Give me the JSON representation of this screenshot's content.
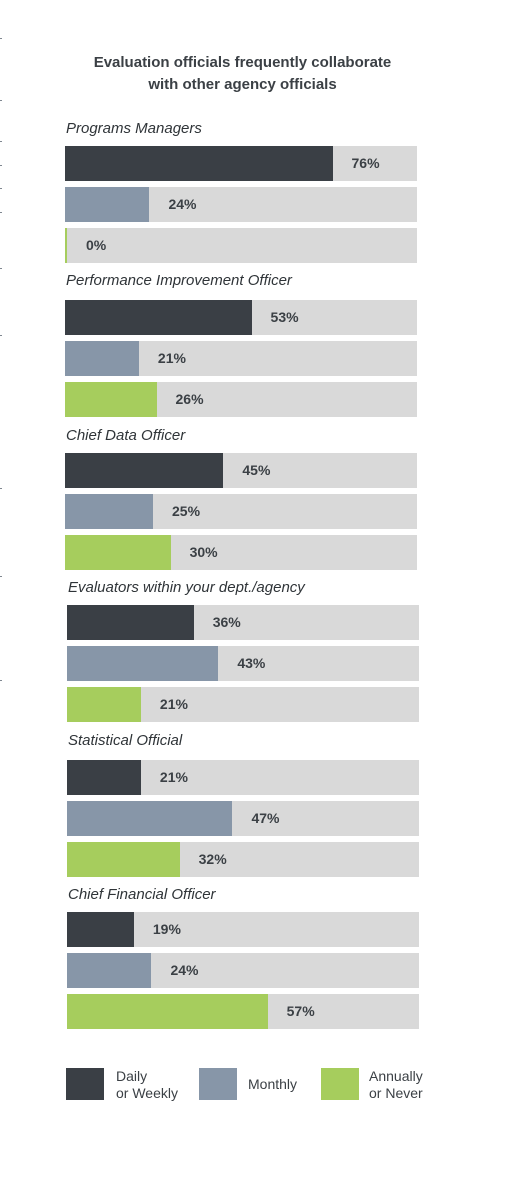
{
  "colors": {
    "daily": "#3a3f45",
    "monthly": "#8796a8",
    "annually": "#a6cd5d",
    "track": "#d9d9d9"
  },
  "chart_data": {
    "type": "bar",
    "orientation": "horizontal",
    "title": [
      "Evaluation officials frequently collaborate",
      "with other agency officials"
    ],
    "xlim": [
      0,
      100
    ],
    "unit": "%",
    "series_keys": [
      "daily",
      "monthly",
      "annually"
    ],
    "legend": [
      {
        "key": "daily",
        "lines": [
          "Daily",
          "or Weekly"
        ]
      },
      {
        "key": "monthly",
        "lines": [
          "Monthly"
        ]
      },
      {
        "key": "annually",
        "lines": [
          "Annually",
          "or Never"
        ]
      }
    ],
    "legend_position": "bottom",
    "groups": [
      {
        "label": "Programs Managers",
        "values": [
          76,
          24,
          0
        ]
      },
      {
        "label": "Performance Improvement Officer",
        "values": [
          53,
          21,
          26
        ]
      },
      {
        "label": "Chief Data Officer",
        "values": [
          45,
          25,
          30
        ]
      },
      {
        "label": "Evaluators within your dept./agency",
        "values": [
          36,
          43,
          21
        ]
      },
      {
        "label": "Statistical Official",
        "values": [
          21,
          47,
          32
        ]
      },
      {
        "label": "Chief Financial Officer",
        "values": [
          19,
          24,
          57
        ]
      }
    ]
  }
}
